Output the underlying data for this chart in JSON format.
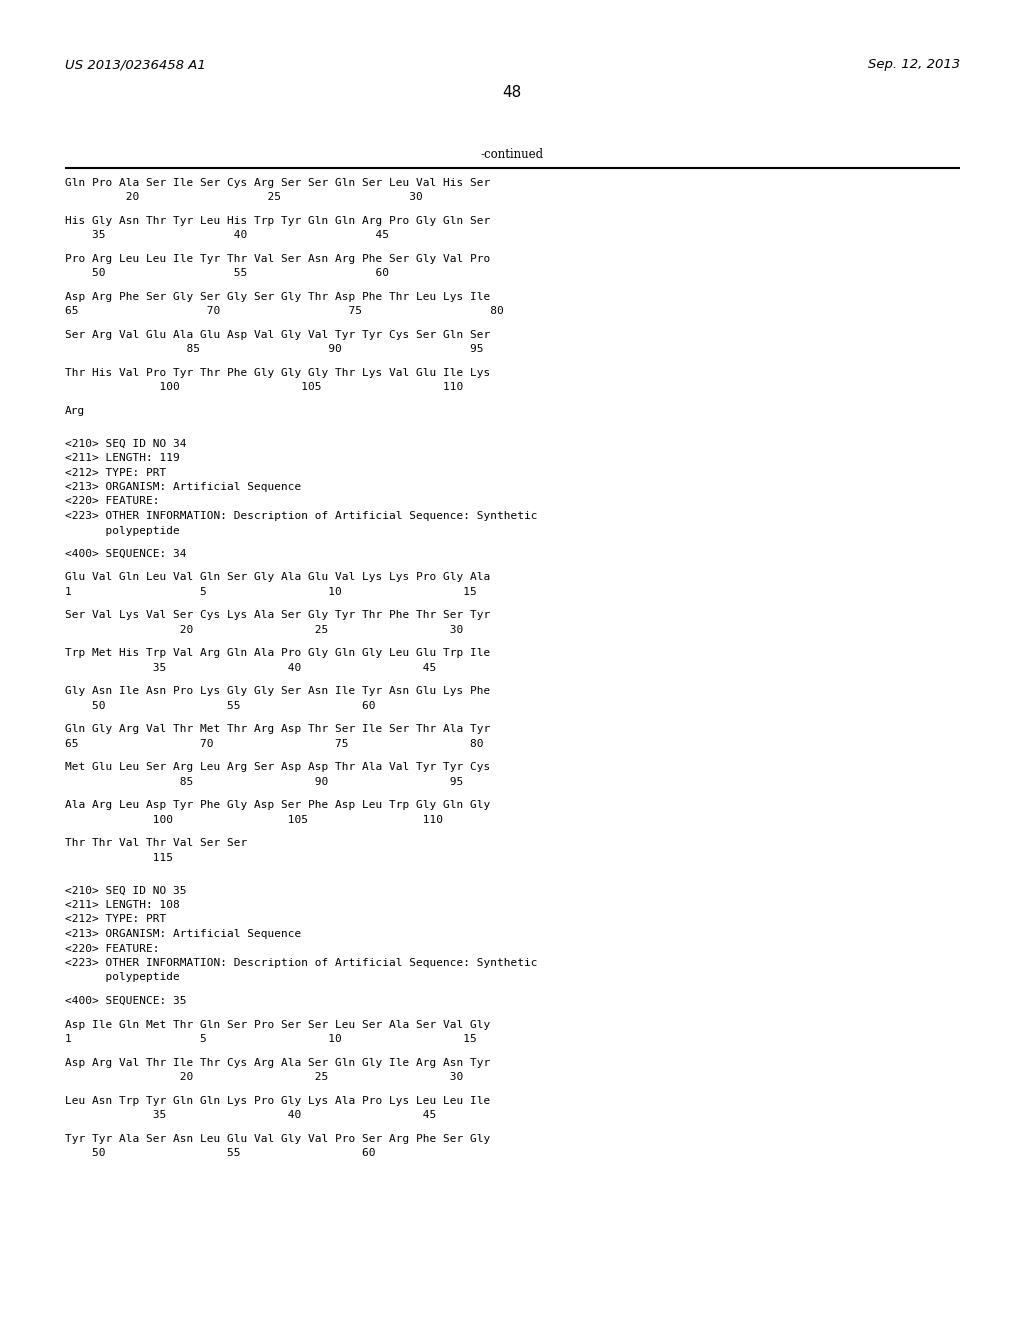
{
  "header_left": "US 2013/0236458 A1",
  "header_right": "Sep. 12, 2013",
  "page_number": "48",
  "continued_label": "-continued",
  "background_color": "#ffffff",
  "text_color": "#000000",
  "lines": [
    {
      "type": "sequence",
      "text": "Gln Pro Ala Ser Ile Ser Cys Arg Ser Ser Gln Ser Leu Val His Ser"
    },
    {
      "type": "numbers",
      "text": "         20                   25                   30"
    },
    {
      "type": "blank"
    },
    {
      "type": "sequence",
      "text": "His Gly Asn Thr Tyr Leu His Trp Tyr Gln Gln Arg Pro Gly Gln Ser"
    },
    {
      "type": "numbers",
      "text": "    35                   40                   45"
    },
    {
      "type": "blank"
    },
    {
      "type": "sequence",
      "text": "Pro Arg Leu Leu Ile Tyr Thr Val Ser Asn Arg Phe Ser Gly Val Pro"
    },
    {
      "type": "numbers",
      "text": "    50                   55                   60"
    },
    {
      "type": "blank"
    },
    {
      "type": "sequence",
      "text": "Asp Arg Phe Ser Gly Ser Gly Ser Gly Thr Asp Phe Thr Leu Lys Ile"
    },
    {
      "type": "numbers",
      "text": "65                   70                   75                   80"
    },
    {
      "type": "blank"
    },
    {
      "type": "sequence",
      "text": "Ser Arg Val Glu Ala Glu Asp Val Gly Val Tyr Tyr Cys Ser Gln Ser"
    },
    {
      "type": "numbers",
      "text": "                  85                   90                   95"
    },
    {
      "type": "blank"
    },
    {
      "type": "sequence",
      "text": "Thr His Val Pro Tyr Thr Phe Gly Gly Gly Thr Lys Val Glu Ile Lys"
    },
    {
      "type": "numbers",
      "text": "              100                  105                  110"
    },
    {
      "type": "blank"
    },
    {
      "type": "sequence",
      "text": "Arg"
    },
    {
      "type": "blank"
    },
    {
      "type": "blank"
    },
    {
      "type": "meta",
      "text": "<210> SEQ ID NO 34"
    },
    {
      "type": "meta",
      "text": "<211> LENGTH: 119"
    },
    {
      "type": "meta",
      "text": "<212> TYPE: PRT"
    },
    {
      "type": "meta",
      "text": "<213> ORGANISM: Artificial Sequence"
    },
    {
      "type": "meta",
      "text": "<220> FEATURE:"
    },
    {
      "type": "meta",
      "text": "<223> OTHER INFORMATION: Description of Artificial Sequence: Synthetic"
    },
    {
      "type": "meta",
      "text": "      polypeptide"
    },
    {
      "type": "blank"
    },
    {
      "type": "meta",
      "text": "<400> SEQUENCE: 34"
    },
    {
      "type": "blank"
    },
    {
      "type": "sequence",
      "text": "Glu Val Gln Leu Val Gln Ser Gly Ala Glu Val Lys Lys Pro Gly Ala"
    },
    {
      "type": "numbers",
      "text": "1                   5                  10                  15"
    },
    {
      "type": "blank"
    },
    {
      "type": "sequence",
      "text": "Ser Val Lys Val Ser Cys Lys Ala Ser Gly Tyr Thr Phe Thr Ser Tyr"
    },
    {
      "type": "numbers",
      "text": "                 20                  25                  30"
    },
    {
      "type": "blank"
    },
    {
      "type": "sequence",
      "text": "Trp Met His Trp Val Arg Gln Ala Pro Gly Gln Gly Leu Glu Trp Ile"
    },
    {
      "type": "numbers",
      "text": "             35                  40                  45"
    },
    {
      "type": "blank"
    },
    {
      "type": "sequence",
      "text": "Gly Asn Ile Asn Pro Lys Gly Gly Ser Asn Ile Tyr Asn Glu Lys Phe"
    },
    {
      "type": "numbers",
      "text": "    50                  55                  60"
    },
    {
      "type": "blank"
    },
    {
      "type": "sequence",
      "text": "Gln Gly Arg Val Thr Met Thr Arg Asp Thr Ser Ile Ser Thr Ala Tyr"
    },
    {
      "type": "numbers",
      "text": "65                  70                  75                  80"
    },
    {
      "type": "blank"
    },
    {
      "type": "sequence",
      "text": "Met Glu Leu Ser Arg Leu Arg Ser Asp Asp Thr Ala Val Tyr Tyr Cys"
    },
    {
      "type": "numbers",
      "text": "                 85                  90                  95"
    },
    {
      "type": "blank"
    },
    {
      "type": "sequence",
      "text": "Ala Arg Leu Asp Tyr Phe Gly Asp Ser Phe Asp Leu Trp Gly Gln Gly"
    },
    {
      "type": "numbers",
      "text": "             100                 105                 110"
    },
    {
      "type": "blank"
    },
    {
      "type": "sequence",
      "text": "Thr Thr Val Thr Val Ser Ser"
    },
    {
      "type": "numbers",
      "text": "             115"
    },
    {
      "type": "blank"
    },
    {
      "type": "blank"
    },
    {
      "type": "meta",
      "text": "<210> SEQ ID NO 35"
    },
    {
      "type": "meta",
      "text": "<211> LENGTH: 108"
    },
    {
      "type": "meta",
      "text": "<212> TYPE: PRT"
    },
    {
      "type": "meta",
      "text": "<213> ORGANISM: Artificial Sequence"
    },
    {
      "type": "meta",
      "text": "<220> FEATURE:"
    },
    {
      "type": "meta",
      "text": "<223> OTHER INFORMATION: Description of Artificial Sequence: Synthetic"
    },
    {
      "type": "meta",
      "text": "      polypeptide"
    },
    {
      "type": "blank"
    },
    {
      "type": "meta",
      "text": "<400> SEQUENCE: 35"
    },
    {
      "type": "blank"
    },
    {
      "type": "sequence",
      "text": "Asp Ile Gln Met Thr Gln Ser Pro Ser Ser Leu Ser Ala Ser Val Gly"
    },
    {
      "type": "numbers",
      "text": "1                   5                  10                  15"
    },
    {
      "type": "blank"
    },
    {
      "type": "sequence",
      "text": "Asp Arg Val Thr Ile Thr Cys Arg Ala Ser Gln Gly Ile Arg Asn Tyr"
    },
    {
      "type": "numbers",
      "text": "                 20                  25                  30"
    },
    {
      "type": "blank"
    },
    {
      "type": "sequence",
      "text": "Leu Asn Trp Tyr Gln Gln Lys Pro Gly Lys Ala Pro Lys Leu Leu Ile"
    },
    {
      "type": "numbers",
      "text": "             35                  40                  45"
    },
    {
      "type": "blank"
    },
    {
      "type": "sequence",
      "text": "Tyr Tyr Ala Ser Asn Leu Glu Val Gly Val Pro Ser Arg Phe Ser Gly"
    },
    {
      "type": "numbers",
      "text": "    50                  55                  60"
    }
  ]
}
